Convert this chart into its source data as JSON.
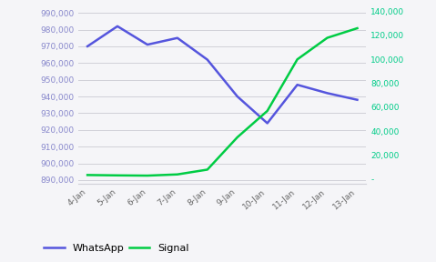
{
  "x_labels": [
    "4-Jan",
    "5-Jan",
    "6-Jan",
    "7-Jan",
    "8-Jan",
    "9-Jan",
    "10-Jan",
    "11-Jan",
    "12-Jan",
    "13-Jan"
  ],
  "whatsapp": [
    970000,
    982000,
    971000,
    975000,
    962000,
    940000,
    924000,
    947000,
    942000,
    938000
  ],
  "signal": [
    3500,
    3200,
    3000,
    4000,
    8000,
    35000,
    57000,
    100000,
    118000,
    126000
  ],
  "whatsapp_color": "#5555dd",
  "signal_color": "#00cc44",
  "bg_color": "#f5f5f8",
  "grid_color": "#d0d0d8",
  "left_axis_color": "#8888cc",
  "right_axis_color": "#00cc88",
  "left_ylim": [
    888000,
    993000
  ],
  "right_ylim": [
    -3500,
    143000
  ],
  "left_yticks": [
    890000,
    900000,
    910000,
    920000,
    930000,
    940000,
    950000,
    960000,
    970000,
    980000,
    990000
  ],
  "right_yticks": [
    0,
    20000,
    40000,
    60000,
    80000,
    100000,
    120000,
    140000
  ],
  "legend_labels": [
    "WhatsApp",
    "Signal"
  ],
  "figsize": [
    4.79,
    2.88
  ],
  "dpi": 100
}
